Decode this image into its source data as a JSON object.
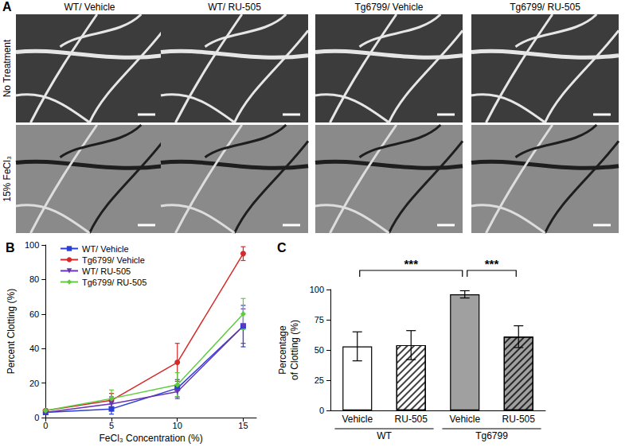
{
  "panel_a": {
    "label": "A",
    "columns": [
      "WT/ Vehicle",
      "WT/ RU-505",
      "Tg6799/ Vehicle",
      "Tg6799/ RU-505"
    ],
    "rows": [
      "No Treatment",
      "15% FeCl₃"
    ]
  },
  "chart_data": [
    {
      "type": "line",
      "annotations": [
        "B"
      ],
      "x_label": "FeCl₃ Concentration (%)",
      "y_label": "Percent Clotting (%)",
      "x": [
        0,
        5,
        10,
        15
      ],
      "xlim": [
        0,
        16
      ],
      "xticks": [
        0,
        5,
        10,
        15
      ],
      "ylim": [
        0,
        100
      ],
      "yticks": [
        0,
        20,
        40,
        60,
        80,
        100
      ],
      "legend": "top-left",
      "series": [
        {
          "name": "WT/ Vehicle",
          "color": "#2b3fd4",
          "marker": "square",
          "values": [
            3,
            5,
            17,
            53
          ],
          "errors": [
            1,
            3,
            5,
            12
          ]
        },
        {
          "name": "Tg6799/ Vehicle",
          "color": "#d62a2a",
          "marker": "circle",
          "values": [
            4,
            10,
            32,
            95
          ],
          "errors": [
            1,
            4,
            11,
            4
          ]
        },
        {
          "name": "WT/ RU-505",
          "color": "#6a35b5",
          "marker": "triangle-down",
          "values": [
            3,
            8,
            15,
            53
          ],
          "errors": [
            1,
            4,
            4,
            10
          ]
        },
        {
          "name": "Tg6799/ RU-505",
          "color": "#5fcc3f",
          "marker": "diamond",
          "values": [
            4,
            11,
            19,
            60
          ],
          "errors": [
            1,
            5,
            7,
            9
          ]
        }
      ]
    },
    {
      "type": "bar",
      "annotations": [
        "C"
      ],
      "y_label": "Percentage\nof Clotting (%)",
      "categories": [
        "Vehicle",
        "RU-505",
        "Vehicle",
        "RU-505"
      ],
      "groups": [
        "WT",
        "WT",
        "Tg6799",
        "Tg6799"
      ],
      "values": [
        53,
        54,
        96,
        61
      ],
      "errors": [
        12,
        12,
        3,
        9
      ],
      "colors": [
        "#ffffff",
        "#ffffff",
        "#a0a0a0",
        "#a0a0a0"
      ],
      "hatch": [
        false,
        true,
        false,
        true
      ],
      "ylim": [
        0,
        100
      ],
      "yticks": [
        0,
        25,
        50,
        75,
        100
      ],
      "significance": [
        {
          "from": 0,
          "to": 2,
          "label": "***"
        },
        {
          "from": 2,
          "to": 3,
          "label": "***"
        }
      ]
    }
  ]
}
